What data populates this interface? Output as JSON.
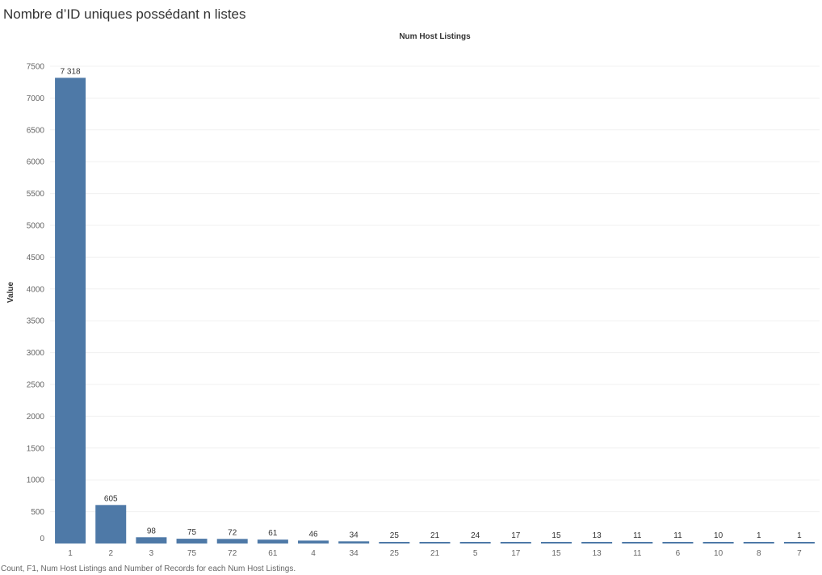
{
  "title": "Nombre d’ID uniques possédant n listes",
  "caption": "Count, F1, Num Host Listings and Number of Records for each Num Host Listings.",
  "chart_data": {
    "type": "bar",
    "column_header": "Num Host Listings",
    "ylabel": "Value",
    "ylim": [
      0,
      7700
    ],
    "yticks": [
      0,
      500,
      1000,
      1500,
      2000,
      2500,
      3000,
      3500,
      4000,
      4500,
      5000,
      5500,
      6000,
      6500,
      7000,
      7500
    ],
    "categories": [
      "1",
      "2",
      "3",
      "75",
      "72",
      "61",
      "4",
      "34",
      "25",
      "21",
      "5",
      "17",
      "15",
      "13",
      "11",
      "6",
      "10",
      "8",
      "7"
    ],
    "values": [
      7318,
      605,
      98,
      75,
      72,
      61,
      46,
      34,
      25,
      21,
      24,
      17,
      15,
      13,
      11,
      11,
      10,
      1,
      1
    ],
    "data_labels": [
      "7 318",
      "605",
      "98",
      "75",
      "72",
      "61",
      "46",
      "34",
      "25",
      "21",
      "24",
      "17",
      "15",
      "13",
      "11",
      "11",
      "10",
      "1",
      "1"
    ],
    "bar_color": "#4e79a7",
    "grid": true
  }
}
